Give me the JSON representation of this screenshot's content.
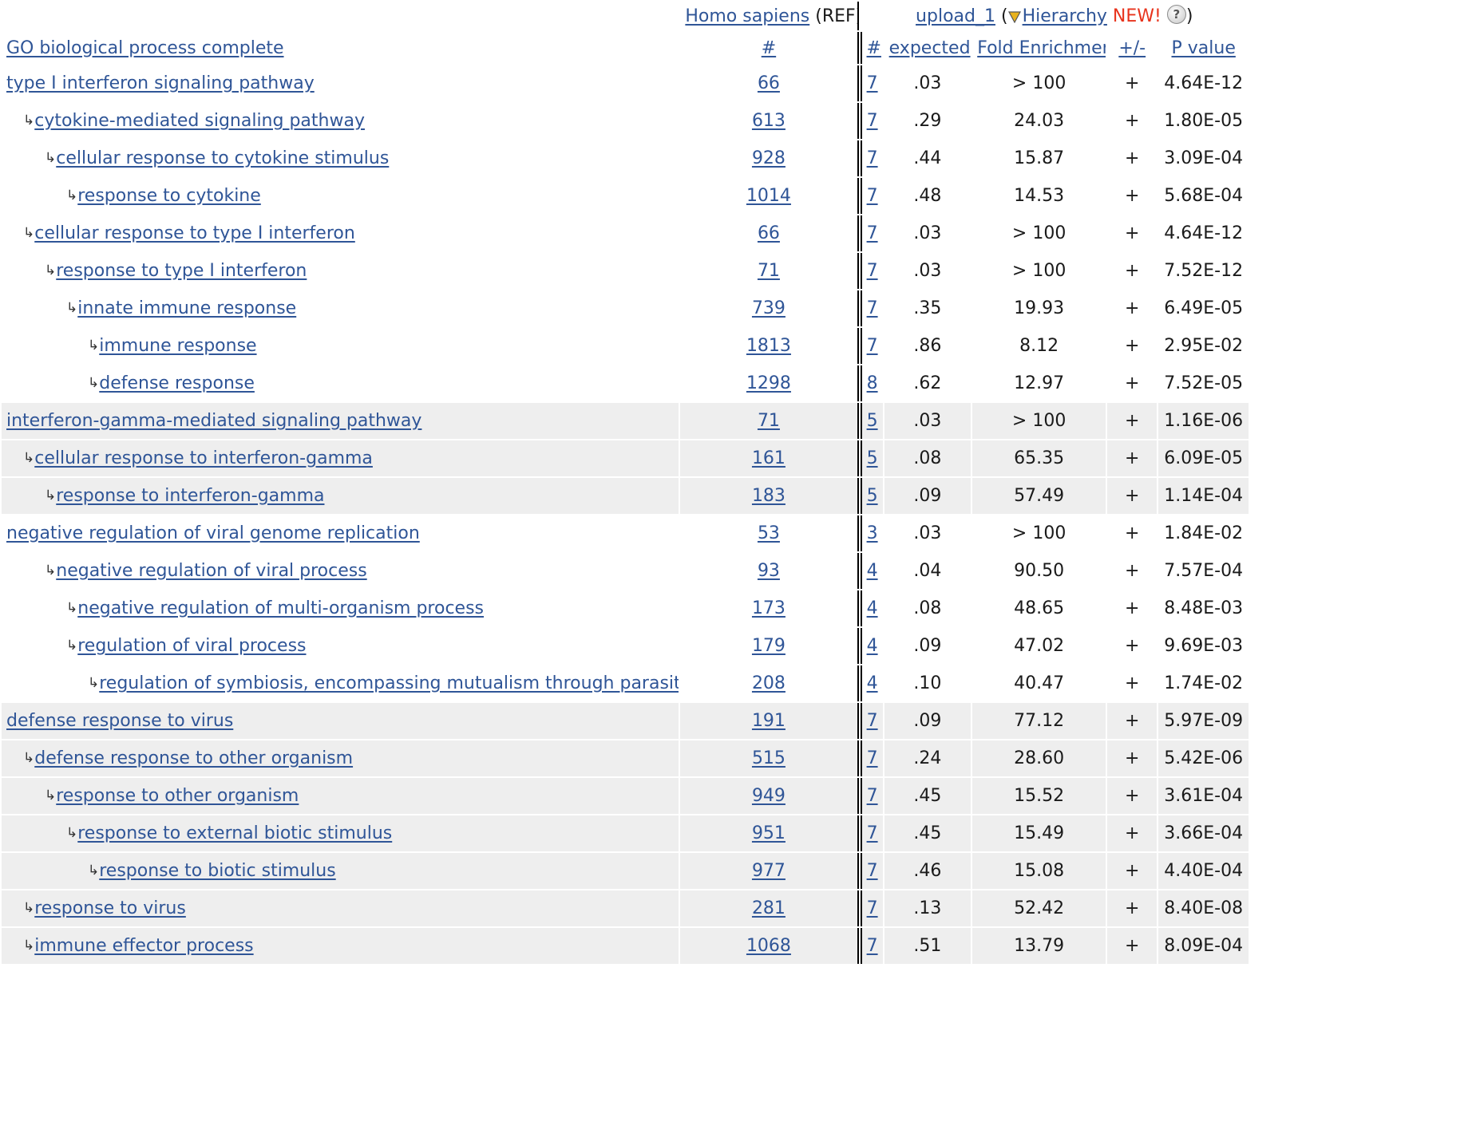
{
  "header": {
    "species_link": "Homo sapiens",
    "ref_label": "(REF)",
    "upload_link": "upload_1",
    "open_paren": "(",
    "hierarchy_link": "Hierarchy",
    "new_badge": "NEW!",
    "close_paren": ")",
    "help_icon_glyph": "?",
    "category_link": "GO biological process complete",
    "ref_count_link": "#",
    "count_link": "#",
    "expected_link": "expected",
    "fold_link": "Fold Enrichment",
    "sign_link": "+/-",
    "pvalue_link": "P value"
  },
  "rows": [
    {
      "term": "type I interferon signaling pathway",
      "indent": 0,
      "ref": "66",
      "count": "7",
      "expected": ".03",
      "fold": "> 100",
      "sign": "+",
      "p": "4.64E-12",
      "shade": false
    },
    {
      "term": "cytokine-mediated signaling pathway",
      "indent": 1,
      "ref": "613",
      "count": "7",
      "expected": ".29",
      "fold": "24.03",
      "sign": "+",
      "p": "1.80E-05",
      "shade": false
    },
    {
      "term": "cellular response to cytokine stimulus",
      "indent": 2,
      "ref": "928",
      "count": "7",
      "expected": ".44",
      "fold": "15.87",
      "sign": "+",
      "p": "3.09E-04",
      "shade": false
    },
    {
      "term": "response to cytokine",
      "indent": 3,
      "ref": "1014",
      "count": "7",
      "expected": ".48",
      "fold": "14.53",
      "sign": "+",
      "p": "5.68E-04",
      "shade": false
    },
    {
      "term": "cellular response to type I interferon",
      "indent": 1,
      "ref": "66",
      "count": "7",
      "expected": ".03",
      "fold": "> 100",
      "sign": "+",
      "p": "4.64E-12",
      "shade": false
    },
    {
      "term": "response to type I interferon",
      "indent": 2,
      "ref": "71",
      "count": "7",
      "expected": ".03",
      "fold": "> 100",
      "sign": "+",
      "p": "7.52E-12",
      "shade": false
    },
    {
      "term": "innate immune response",
      "indent": 3,
      "ref": "739",
      "count": "7",
      "expected": ".35",
      "fold": "19.93",
      "sign": "+",
      "p": "6.49E-05",
      "shade": false
    },
    {
      "term": "immune response",
      "indent": 4,
      "ref": "1813",
      "count": "7",
      "expected": ".86",
      "fold": "8.12",
      "sign": "+",
      "p": "2.95E-02",
      "shade": false
    },
    {
      "term": "defense response",
      "indent": 4,
      "ref": "1298",
      "count": "8",
      "expected": ".62",
      "fold": "12.97",
      "sign": "+",
      "p": "7.52E-05",
      "shade": false
    },
    {
      "term": "interferon-gamma-mediated signaling pathway",
      "indent": 0,
      "ref": "71",
      "count": "5",
      "expected": ".03",
      "fold": "> 100",
      "sign": "+",
      "p": "1.16E-06",
      "shade": true
    },
    {
      "term": "cellular response to interferon-gamma",
      "indent": 1,
      "ref": "161",
      "count": "5",
      "expected": ".08",
      "fold": "65.35",
      "sign": "+",
      "p": "6.09E-05",
      "shade": true
    },
    {
      "term": "response to interferon-gamma",
      "indent": 2,
      "ref": "183",
      "count": "5",
      "expected": ".09",
      "fold": "57.49",
      "sign": "+",
      "p": "1.14E-04",
      "shade": true
    },
    {
      "term": "negative regulation of viral genome replication",
      "indent": 0,
      "ref": "53",
      "count": "3",
      "expected": ".03",
      "fold": "> 100",
      "sign": "+",
      "p": "1.84E-02",
      "shade": false
    },
    {
      "term": "negative regulation of viral process",
      "indent": 2,
      "ref": "93",
      "count": "4",
      "expected": ".04",
      "fold": "90.50",
      "sign": "+",
      "p": "7.57E-04",
      "shade": false
    },
    {
      "term": "negative regulation of multi-organism process",
      "indent": 3,
      "ref": "173",
      "count": "4",
      "expected": ".08",
      "fold": "48.65",
      "sign": "+",
      "p": "8.48E-03",
      "shade": false
    },
    {
      "term": "regulation of viral process",
      "indent": 3,
      "ref": "179",
      "count": "4",
      "expected": ".09",
      "fold": "47.02",
      "sign": "+",
      "p": "9.69E-03",
      "shade": false
    },
    {
      "term": "regulation of symbiosis, encompassing mutualism through parasitism",
      "indent": 4,
      "ref": "208",
      "count": "4",
      "expected": ".10",
      "fold": "40.47",
      "sign": "+",
      "p": "1.74E-02",
      "shade": false
    },
    {
      "term": "defense response to virus",
      "indent": 0,
      "ref": "191",
      "count": "7",
      "expected": ".09",
      "fold": "77.12",
      "sign": "+",
      "p": "5.97E-09",
      "shade": true
    },
    {
      "term": "defense response to other organism",
      "indent": 1,
      "ref": "515",
      "count": "7",
      "expected": ".24",
      "fold": "28.60",
      "sign": "+",
      "p": "5.42E-06",
      "shade": true
    },
    {
      "term": "response to other organism",
      "indent": 2,
      "ref": "949",
      "count": "7",
      "expected": ".45",
      "fold": "15.52",
      "sign": "+",
      "p": "3.61E-04",
      "shade": true
    },
    {
      "term": "response to external biotic stimulus",
      "indent": 3,
      "ref": "951",
      "count": "7",
      "expected": ".45",
      "fold": "15.49",
      "sign": "+",
      "p": "3.66E-04",
      "shade": true
    },
    {
      "term": "response to biotic stimulus",
      "indent": 4,
      "ref": "977",
      "count": "7",
      "expected": ".46",
      "fold": "15.08",
      "sign": "+",
      "p": "4.40E-04",
      "shade": true
    },
    {
      "term": "response to virus",
      "indent": 1,
      "ref": "281",
      "count": "7",
      "expected": ".13",
      "fold": "52.42",
      "sign": "+",
      "p": "8.40E-08",
      "shade": true
    },
    {
      "term": "immune effector process",
      "indent": 1,
      "ref": "1068",
      "count": "7",
      "expected": ".51",
      "fold": "13.79",
      "sign": "+",
      "p": "8.09E-04",
      "shade": true
    }
  ],
  "child_arrow_glyph": "↳",
  "colors": {
    "link": "#2f5597",
    "new_badge": "#e8331c",
    "shade_row": "#eeeeee",
    "separator": "#000000"
  },
  "icons": {
    "hierarchy": "hierarchy-triangle-icon",
    "help": "help-icon"
  }
}
